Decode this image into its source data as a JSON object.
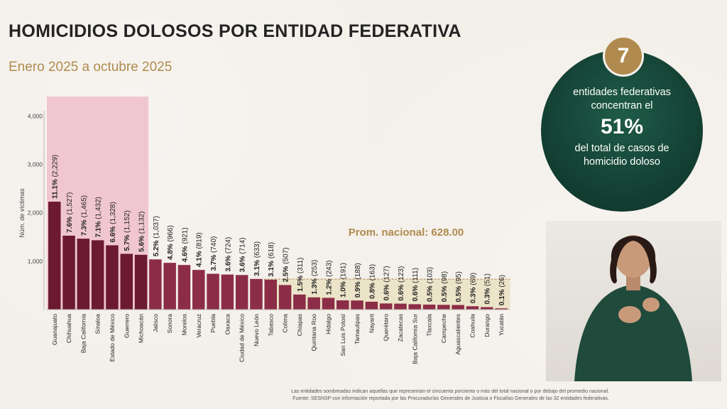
{
  "header": {
    "title": "HOMICIDIOS DOLOSOS POR ENTIDAD FEDERATIVA",
    "subtitle": "Enero 2025 a octubre 2025"
  },
  "colors": {
    "bar_dark": "#6b1a32",
    "bar_light": "#8c2d47",
    "highlight_bg": "#f0c7d0",
    "average_band": "#ece4c9",
    "accent_gold": "#b08a4e",
    "panel_green": "#123d31"
  },
  "chart_data": {
    "type": "bar",
    "title": "",
    "xlabel": "",
    "ylabel": "Núm. de víctimas",
    "ylim": [
      0,
      4400
    ],
    "yticks": [
      1000,
      2000,
      3000,
      4000
    ],
    "ytick_labels": [
      "1,000",
      "2,000",
      "3,000",
      "4,000"
    ],
    "grid": false,
    "categories": [
      "Guanajuato",
      "Chihuahua",
      "Baja California",
      "Sinaloa",
      "Estado de México",
      "Guerrero",
      "Michoacán",
      "Jalisco",
      "Sonora",
      "Morelos",
      "Veracruz",
      "Puebla",
      "Oaxaca",
      "Ciudad de México",
      "Nuevo León",
      "Tabasco",
      "Colima",
      "Chiapas",
      "Quintana Roo",
      "Hidalgo",
      "San Luis Potosí",
      "Tamaulipas",
      "Nayarit",
      "Querétaro",
      "Zacatecas",
      "Baja California Sur",
      "Tlaxcala",
      "Campeche",
      "Aguascalientes",
      "Coahuila",
      "Durango",
      "Yucatán"
    ],
    "values": [
      2229,
      1527,
      1465,
      1432,
      1328,
      1152,
      1132,
      1037,
      966,
      921,
      819,
      740,
      724,
      714,
      633,
      618,
      507,
      311,
      253,
      243,
      191,
      188,
      163,
      127,
      123,
      111,
      103,
      98,
      95,
      69,
      51,
      26
    ],
    "pct_labels": [
      "11.1%",
      "7.6%",
      "7.3%",
      "7.1%",
      "6.6%",
      "5.7%",
      "5.6%",
      "5.2%",
      "4.8%",
      "4.6%",
      "4.1%",
      "3.7%",
      "3.6%",
      "3.6%",
      "3.1%",
      "3.1%",
      "2.5%",
      "1.5%",
      "1.3%",
      "1.2%",
      "1.0%",
      "0.9%",
      "0.8%",
      "0.6%",
      "0.6%",
      "0.6%",
      "0.5%",
      "0.5%",
      "0.5%",
      "0.3%",
      "0.3%",
      "0.1%"
    ],
    "value_labels": [
      "(2,229)",
      "(1,527)",
      "(1,465)",
      "(1,432)",
      "(1,328)",
      "(1,152)",
      "(1,132)",
      "(1,037)",
      "(966)",
      "(921)",
      "(819)",
      "(740)",
      "(724)",
      "(714)",
      "(633)",
      "(618)",
      "(507)",
      "(311)",
      "(253)",
      "(243)",
      "(191)",
      "(188)",
      "(163)",
      "(127)",
      "(123)",
      "(111)",
      "(103)",
      "(98)",
      "(95)",
      "(69)",
      "(51)",
      "(26)"
    ],
    "highlighted_count": 7,
    "average": 628.0,
    "average_label": "Prom. nacional: 628.00"
  },
  "panel": {
    "count": "7",
    "line1": "entidades federativas",
    "line2": "concentran el",
    "percent": "51%",
    "line3": "del total de casos de",
    "line4": "homicidio doloso"
  },
  "footnotes": {
    "note1": "Las entidades sombreadas indican aquellas que representan el cincuenta porciento o más del total nacional o por debajo del promedio nacional.",
    "note2": "Fuente: SESNSP con información reportada por las Procuradurías Generales de Justicia o Fiscalías Generales de las 32 entidades federativas."
  }
}
